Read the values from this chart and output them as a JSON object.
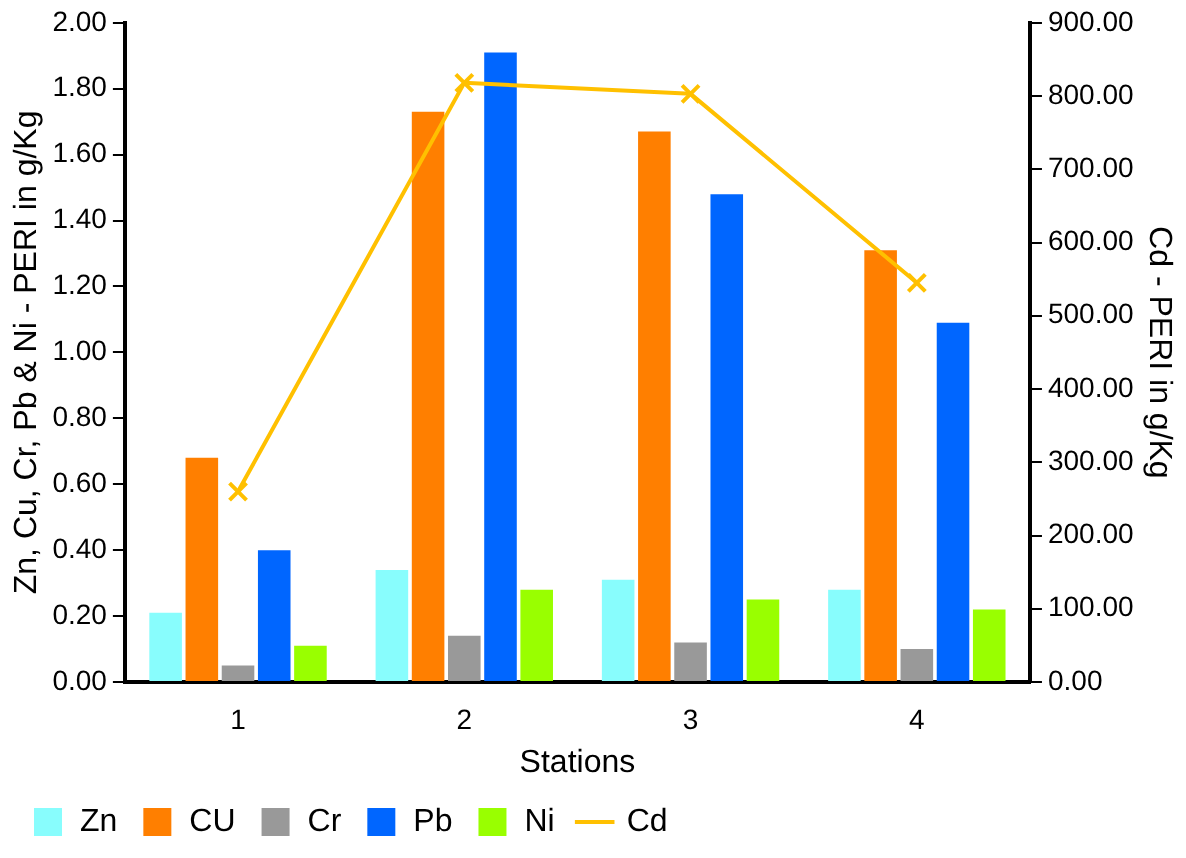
{
  "chart_data": {
    "type": "bar",
    "xlabel": "Stations",
    "ylabel": "Zn, Cu, Cr, Pb & Ni - PERI in g/Kg",
    "y2label": "Cd - PERI in g/Kg",
    "categories": [
      "1",
      "2",
      "3",
      "4"
    ],
    "series": [
      {
        "name": "Zn",
        "color": "#88fdfd",
        "values": [
          0.21,
          0.34,
          0.31,
          0.28
        ]
      },
      {
        "name": "CU",
        "color": "#ff7f00",
        "values": [
          0.68,
          1.73,
          1.67,
          1.31
        ]
      },
      {
        "name": "Cr",
        "color": "#999999",
        "values": [
          0.05,
          0.14,
          0.12,
          0.1
        ]
      },
      {
        "name": "Pb",
        "color": "#0066ff",
        "values": [
          0.4,
          1.91,
          1.48,
          1.09
        ]
      },
      {
        "name": "Ni",
        "color": "#99ff00",
        "values": [
          0.11,
          0.28,
          0.25,
          0.22
        ]
      },
      {
        "name": "Cd",
        "type": "line",
        "axis": "y2",
        "color": "#ffc000",
        "marker": "cross",
        "values": [
          260,
          818,
          803,
          545
        ]
      }
    ],
    "ylim": [
      0,
      2
    ],
    "yticks": [
      {
        "value": 0,
        "label": "0.00"
      },
      {
        "value": 0.2,
        "label": "0.20"
      },
      {
        "value": 0.4,
        "label": "0.40"
      },
      {
        "value": 0.6,
        "label": "0.60"
      },
      {
        "value": 0.8,
        "label": "0.80"
      },
      {
        "value": 1,
        "label": "1.00"
      },
      {
        "value": 1.2,
        "label": "1.20"
      },
      {
        "value": 1.4,
        "label": "1.40"
      },
      {
        "value": 1.6,
        "label": "1.60"
      },
      {
        "value": 1.8,
        "label": "1.80"
      },
      {
        "value": 2,
        "label": "2.00"
      }
    ],
    "y2lim": [
      0,
      900
    ],
    "y2ticks": [
      {
        "value": 0,
        "label": "0.00"
      },
      {
        "value": 100,
        "label": "100.00"
      },
      {
        "value": 200,
        "label": "200.00"
      },
      {
        "value": 300,
        "label": "300.00"
      },
      {
        "value": 400,
        "label": "400.00"
      },
      {
        "value": 500,
        "label": "500.00"
      },
      {
        "value": 600,
        "label": "600.00"
      },
      {
        "value": 700,
        "label": "700.00"
      },
      {
        "value": 800,
        "label": "800.00"
      },
      {
        "value": 900,
        "label": "900.00"
      }
    ],
    "grid": false,
    "legend": "bottom"
  }
}
